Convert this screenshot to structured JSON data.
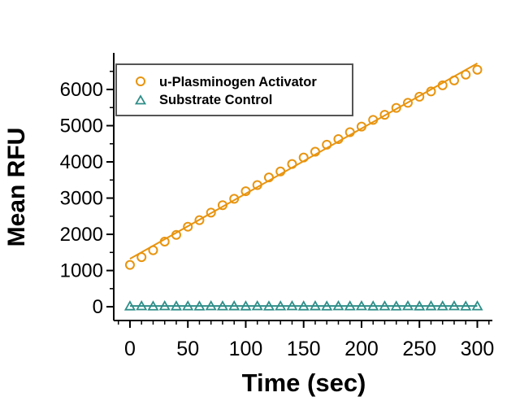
{
  "figure": {
    "background": "#ffffff",
    "axis_color": "#000000"
  },
  "legend": {
    "border_color": "#555555",
    "background": "#ffffff"
  },
  "chart_data": {
    "type": "scatter",
    "title": "",
    "xlabel": "Time (sec)",
    "ylabel": "Mean RFU",
    "xlim": [
      -14,
      313
    ],
    "ylim": [
      -380,
      7010
    ],
    "x_major_ticks": [
      0,
      50,
      100,
      150,
      200,
      250,
      300
    ],
    "x_minor_step": 10,
    "y_major_ticks": [
      0,
      1000,
      2000,
      3000,
      4000,
      5000,
      6000
    ],
    "y_minor_step": 500,
    "grid": false,
    "legend_position": "top-left-inside",
    "series": [
      {
        "name": "u-Plasminogen Activator",
        "marker": "circle",
        "color": "#E8940F",
        "x": [
          0,
          10,
          20,
          30,
          40,
          50,
          60,
          70,
          80,
          90,
          100,
          110,
          120,
          130,
          140,
          150,
          160,
          170,
          180,
          190,
          200,
          210,
          220,
          230,
          240,
          250,
          260,
          270,
          280,
          290,
          300
        ],
        "y": [
          1155,
          1370,
          1560,
          1800,
          1985,
          2210,
          2390,
          2600,
          2805,
          2980,
          3190,
          3360,
          3570,
          3735,
          3940,
          4120,
          4280,
          4475,
          4630,
          4820,
          4975,
          5160,
          5300,
          5490,
          5630,
          5800,
          5945,
          6115,
          6250,
          6410,
          6545
        ],
        "trendline": {
          "x": [
            0,
            300
          ],
          "y": [
            1325,
            6720
          ]
        }
      },
      {
        "name": "Substrate Control",
        "marker": "triangle",
        "color": "#2F8E89",
        "x": [
          0,
          10,
          20,
          30,
          40,
          50,
          60,
          70,
          80,
          90,
          100,
          110,
          120,
          130,
          140,
          150,
          160,
          170,
          180,
          190,
          200,
          210,
          220,
          230,
          240,
          250,
          260,
          270,
          280,
          290,
          300
        ],
        "y": [
          20,
          25,
          18,
          24,
          20,
          22,
          19,
          25,
          21,
          23,
          20,
          24,
          19,
          22,
          25,
          20,
          23,
          18,
          24,
          21,
          25,
          20,
          22,
          19,
          24,
          20,
          23,
          21,
          25,
          19,
          22
        ],
        "trendline": {
          "x": [
            0,
            300
          ],
          "y": [
            21,
            21
          ]
        }
      }
    ]
  }
}
